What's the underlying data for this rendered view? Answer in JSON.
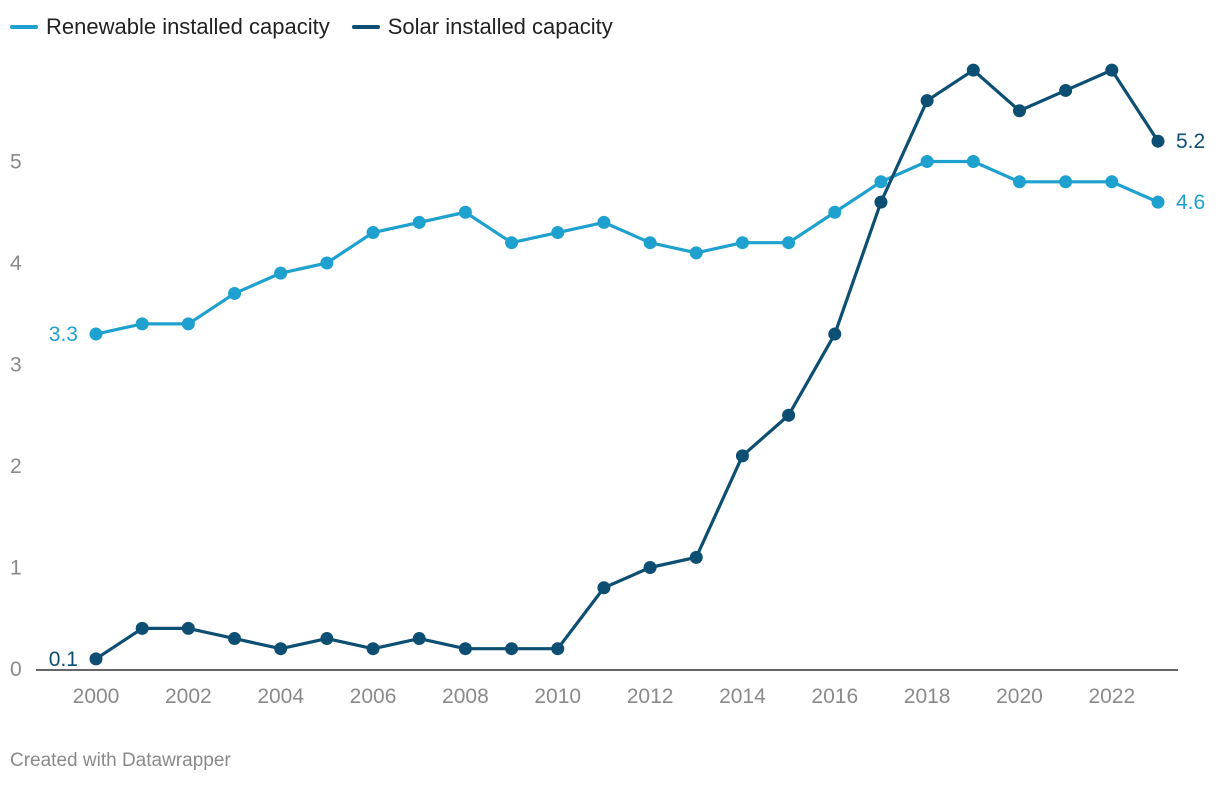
{
  "legend": {
    "items": [
      {
        "label": "Renewable installed capacity",
        "color": "#1ea1cf"
      },
      {
        "label": "Solar installed capacity",
        "color": "#0d4f73"
      }
    ]
  },
  "credit": "Created with Datawrapper",
  "chart_data": {
    "type": "line",
    "x": [
      2000,
      2001,
      2002,
      2003,
      2004,
      2005,
      2006,
      2007,
      2008,
      2009,
      2010,
      2011,
      2012,
      2013,
      2014,
      2015,
      2016,
      2017,
      2018,
      2019,
      2020,
      2021,
      2022,
      2023
    ],
    "x_tick_labels": [
      "2000",
      "2002",
      "2004",
      "2006",
      "2008",
      "2010",
      "2012",
      "2014",
      "2016",
      "2018",
      "2020",
      "2022"
    ],
    "y_tick_labels": [
      "0",
      "1",
      "2",
      "3",
      "4",
      "5"
    ],
    "ylim": [
      0,
      6
    ],
    "xlim": [
      2000,
      2023
    ],
    "title": "",
    "xlabel": "",
    "ylabel": "",
    "series": [
      {
        "name": "Renewable installed capacity",
        "color": "#1ea1cf",
        "values": [
          3.3,
          3.4,
          3.4,
          3.7,
          3.9,
          4.0,
          4.3,
          4.4,
          4.5,
          4.2,
          4.3,
          4.4,
          4.2,
          4.1,
          4.2,
          4.2,
          4.5,
          4.8,
          5.0,
          5.0,
          4.8,
          4.8,
          4.8,
          4.6
        ],
        "start_label": "3.3",
        "end_label": "4.6"
      },
      {
        "name": "Solar installed capacity",
        "color": "#0d4f73",
        "values": [
          0.1,
          0.4,
          0.4,
          0.3,
          0.2,
          0.3,
          0.2,
          0.3,
          0.2,
          0.2,
          0.2,
          0.8,
          1.0,
          1.1,
          2.1,
          2.5,
          3.3,
          4.6,
          5.6,
          5.9,
          5.5,
          5.7,
          5.9,
          5.2
        ],
        "start_label": "0.1",
        "end_label": "5.2"
      }
    ]
  }
}
